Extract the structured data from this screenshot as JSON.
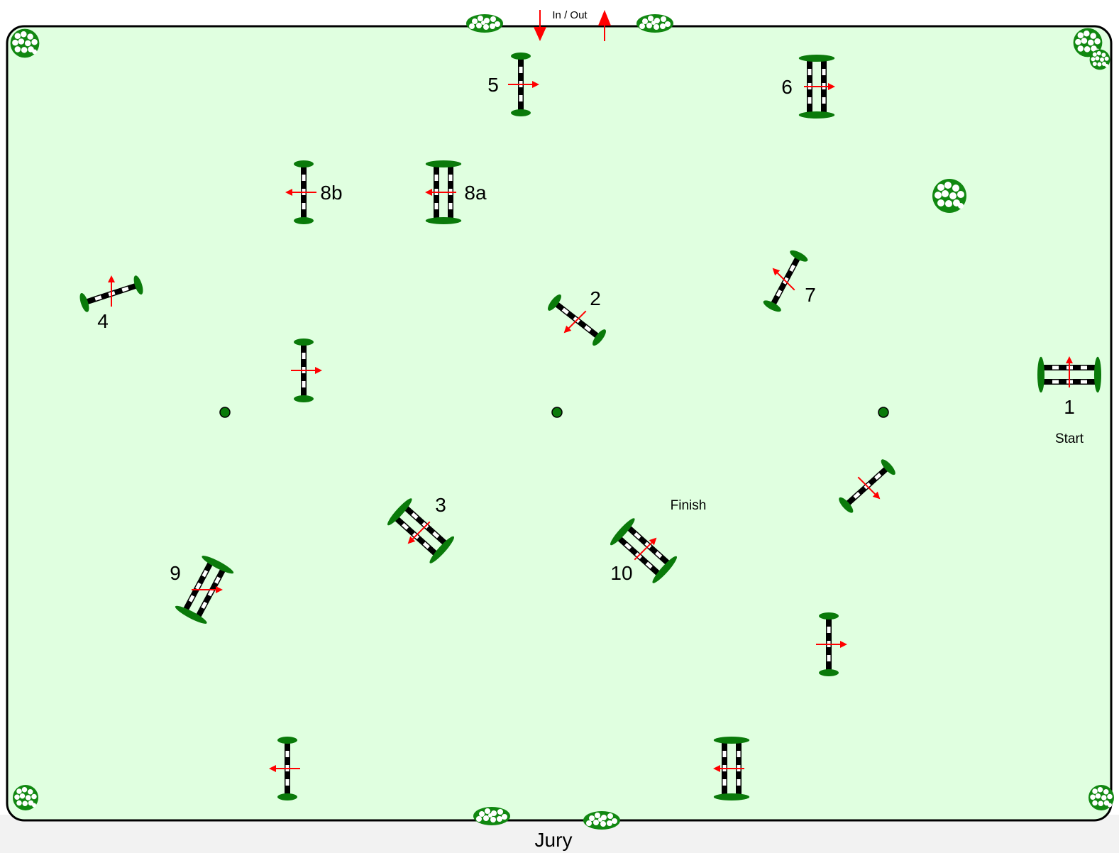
{
  "arena": {
    "fill": "#e0ffe0",
    "border": "#000000",
    "outside": "#f2f2f2"
  },
  "colors": {
    "pole_dark": "#000000",
    "pole_light": "#ffffff",
    "standard": "#0a7a0a",
    "arrow": "#ff0000",
    "flower_leaf": "#118811",
    "flower_petal": "#ffffff"
  },
  "labels": {
    "gate": "In / Out",
    "start": "Start",
    "finish": "Finish",
    "jury": "Jury"
  },
  "fences": [
    {
      "id": "1",
      "label": "1",
      "kind": "oxer",
      "direction": "up"
    },
    {
      "id": "2",
      "label": "2",
      "kind": "vertical",
      "direction": "down-left"
    },
    {
      "id": "3",
      "label": "3",
      "kind": "oxer",
      "direction": "down-left"
    },
    {
      "id": "4",
      "label": "4",
      "kind": "vertical",
      "direction": "up"
    },
    {
      "id": "5",
      "label": "5",
      "kind": "vertical",
      "direction": "right"
    },
    {
      "id": "6",
      "label": "6",
      "kind": "oxer",
      "direction": "right"
    },
    {
      "id": "7",
      "label": "7",
      "kind": "vertical",
      "direction": "up-left"
    },
    {
      "id": "8a",
      "label": "8a",
      "kind": "oxer",
      "direction": "left"
    },
    {
      "id": "8b",
      "label": "8b",
      "kind": "vertical",
      "direction": "left"
    },
    {
      "id": "9",
      "label": "9",
      "kind": "oxer",
      "direction": "right"
    },
    {
      "id": "10",
      "label": "10",
      "kind": "oxer",
      "direction": "up-right"
    },
    {
      "id": "u1",
      "label": "",
      "kind": "vertical",
      "direction": "right"
    },
    {
      "id": "u2",
      "label": "",
      "kind": "vertical",
      "direction": "down-right"
    },
    {
      "id": "u3",
      "label": "",
      "kind": "vertical",
      "direction": "right"
    },
    {
      "id": "u4",
      "label": "",
      "kind": "vertical",
      "direction": "left"
    },
    {
      "id": "u5",
      "label": "",
      "kind": "oxer",
      "direction": "left"
    }
  ],
  "markers": [
    "left-marker",
    "center-marker",
    "right-marker"
  ]
}
